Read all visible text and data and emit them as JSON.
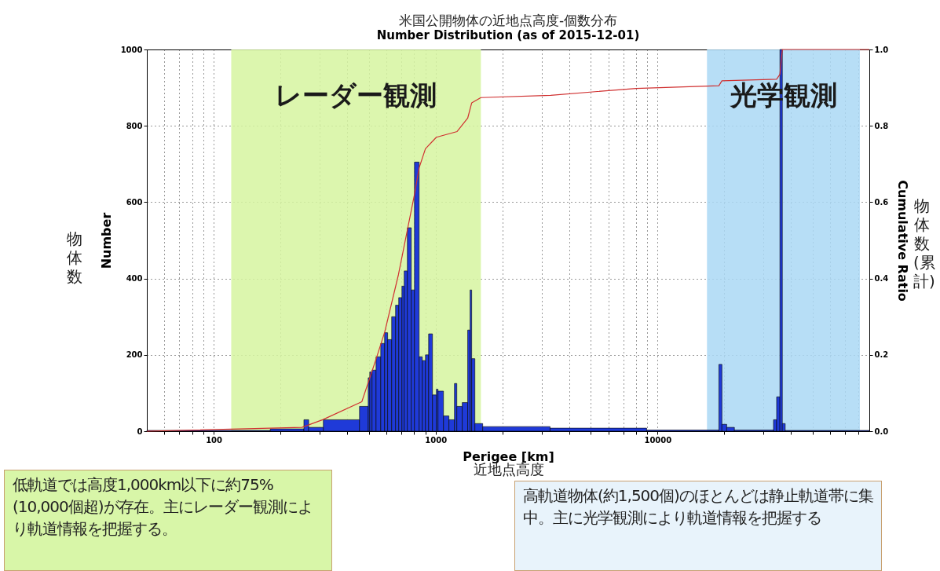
{
  "chart_data": {
    "type": "histogram",
    "title": "米国公開物体の近地点高度-個数分布",
    "subtitle": "Number Distribution (as of 2015-12-01)",
    "xlabel": "Perigee [km]",
    "ylabel": "Number",
    "y2label": "Cumulative Ratio",
    "log": "x",
    "grid": true,
    "xlim": [
      50,
      90000
    ],
    "xticks": [
      {
        "value": 60,
        "label": null
      },
      {
        "value": 70,
        "label": null
      },
      {
        "value": 80,
        "label": null
      },
      {
        "value": 90,
        "label": null
      },
      100,
      {
        "value": 200,
        "label": null
      },
      {
        "value": 300,
        "label": null
      },
      {
        "value": 400,
        "label": null
      },
      {
        "value": 500,
        "label": null
      },
      {
        "value": 600,
        "label": null
      },
      {
        "value": 700,
        "label": null
      },
      {
        "value": 800,
        "label": null
      },
      {
        "value": 900,
        "label": null
      },
      1000,
      {
        "value": 2000,
        "label": null
      },
      {
        "value": 3000,
        "label": null
      },
      {
        "value": 4000,
        "label": null
      },
      {
        "value": 5000,
        "label": null
      },
      {
        "value": 6000,
        "label": null
      },
      {
        "value": 7000,
        "label": null
      },
      {
        "value": 8000,
        "label": null
      },
      {
        "value": 9000,
        "label": null
      },
      10000,
      {
        "value": 20000,
        "label": null
      },
      {
        "value": 30000,
        "label": null
      },
      {
        "value": 40000,
        "label": null
      },
      {
        "value": 50000,
        "label": null
      },
      {
        "value": 60000,
        "label": null
      },
      {
        "value": 70000,
        "label": null
      },
      {
        "value": 80000,
        "label": null
      }
    ],
    "ylim": [
      0,
      1000
    ],
    "yticks": [
      0,
      200,
      400,
      600,
      800,
      1000
    ],
    "y2lim": [
      0,
      1
    ],
    "y2ticks": [
      {
        "value": 0,
        "label": "0.0"
      },
      0.2,
      0.4,
      0.6,
      0.8,
      {
        "value": 1,
        "label": "1.0"
      }
    ],
    "bins": [
      50,
      180,
      255,
      268,
      312,
      454,
      497,
      505,
      517,
      539,
      566,
      589,
      608,
      634,
      660,
      682,
      705,
      722,
      746,
      777,
      803,
      843,
      871,
      900,
      930,
      968,
      1008,
      1025,
      1085,
      1148,
      1216,
      1246,
      1318,
      1395,
      1430,
      1454,
      1503,
      1630,
      3280,
      8930,
      18900,
      19500,
      20500,
      22200,
      33300,
      34400,
      35600,
      36500,
      37600,
      90000
    ],
    "series": [
      {
        "color": "#1f3ad8",
        "values": [
          2,
          6,
          30,
          10,
          30,
          65,
          140,
          155,
          160,
          195,
          230,
          258,
          240,
          300,
          330,
          350,
          380,
          420,
          533,
          370,
          705,
          195,
          185,
          200,
          255,
          95,
          110,
          105,
          40,
          30,
          125,
          65,
          75,
          265,
          370,
          190,
          20,
          12,
          8,
          3,
          175,
          18,
          10,
          3,
          30,
          90,
          1000,
          20,
          2
        ]
      },
      {
        "type": "line",
        "axis": "y2",
        "line_style": "solid",
        "color": "#d03030",
        "x": [
          50,
          250,
          310,
          465,
          540,
          590,
          680,
          803,
          843,
          900,
          1008,
          1250,
          1395,
          1454,
          1600,
          3300,
          8000,
          18900,
          19500,
          34400,
          35600,
          36500,
          90000
        ],
        "values": [
          0,
          0.01,
          0.03,
          0.077,
          0.19,
          0.26,
          0.41,
          0.62,
          0.69,
          0.74,
          0.77,
          0.785,
          0.82,
          0.86,
          0.874,
          0.88,
          0.898,
          0.905,
          0.918,
          0.922,
          0.935,
          1.0,
          1.0
        ]
      }
    ],
    "bands": [
      {
        "axis": "x",
        "from": 120,
        "to": 1600,
        "label": "レーダー観測",
        "color": "#d6f5a0"
      },
      {
        "axis": "x",
        "from": 16700,
        "to": 81600,
        "label": "光学観測",
        "color": "#aad8f5"
      }
    ],
    "annotations": [
      "低軌道では高度1,000km以下に約75%(10,000個超)が存在。主にレーダー観測により軌道情報を把握する。",
      "高軌道物体(約1,500個)のほとんどは静止軌道帯に集中。主に光学観測により軌道情報を把握する",
      "物体数",
      "物体数(累計)",
      "近地点高度"
    ]
  }
}
